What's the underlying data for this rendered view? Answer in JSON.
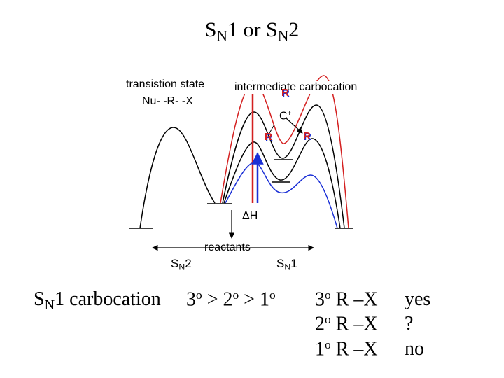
{
  "title": {
    "prefix": "S",
    "sub1": "N",
    "mid": "1 or S",
    "sub2": "N",
    "suffix": "2"
  },
  "diagram": {
    "transition_state_label": "transistion state",
    "transition_state_formula": "Nu- -R- -X",
    "intermediate_label": "intermediate carbocation",
    "carbon_label": "C",
    "carbon_charge": "+",
    "r_label": "R",
    "delta_h_label": "ΔH",
    "reactants_label": "reactants",
    "sn2_arrow_label": {
      "s": "S",
      "sub": "N",
      "n": "2"
    },
    "sn1_arrow_label": {
      "s": "S",
      "sub": "N",
      "n": "1"
    },
    "colors": {
      "red": "#d42020",
      "blue": "#1a2fd6",
      "black": "#000000",
      "r_text": "#d42020",
      "r_shadow": "#1a2fd6"
    }
  },
  "summary": {
    "lead": {
      "s": "S",
      "sub": "N",
      "rest": "1 carbocation"
    },
    "order": {
      "a": "3",
      "b": "2",
      "c": "1",
      "deg": "o",
      "gt": ">"
    },
    "rows": [
      {
        "deg": "3",
        "o": "o",
        "text": "R –X",
        "answer": "yes"
      },
      {
        "deg": "2",
        "o": "o",
        "text": "R –X",
        "answer": "?"
      },
      {
        "deg": "1",
        "o": "o",
        "text": "R –X",
        "answer": "no"
      }
    ]
  }
}
